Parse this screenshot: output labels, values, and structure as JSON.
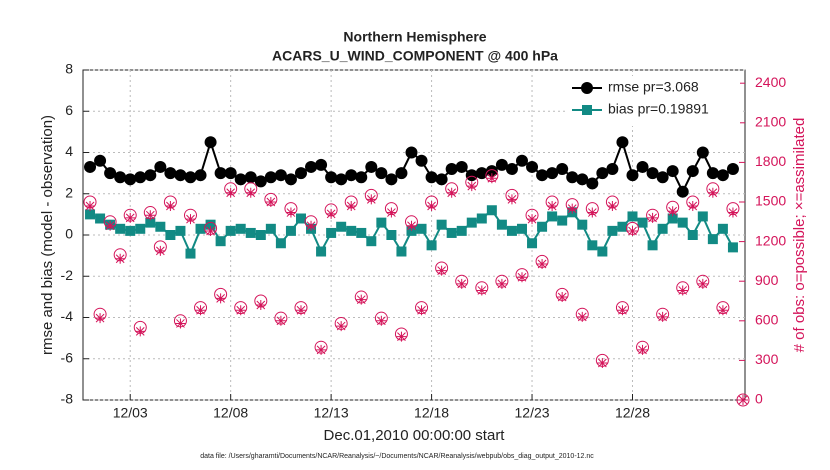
{
  "chart_data": {
    "type": "line",
    "title": "Northern Hemisphere",
    "subtitle": "ACARS_U_WIND_COMPONENT @ 400 hPa",
    "xlabel": "Dec.01,2010 00:00:00 start",
    "ylabel": "rmse and bias (model - observation)",
    "y2label": "# of obs: o=possible; ×=assimilated",
    "footnote": "data file: /Users/gharamti/Documents/NCAR/Reanalysis/~/Documents/NCAR/Reanalysis/webpub/obs_diag_output_2010-12.nc",
    "xlim": [
      -0.35,
      32.6
    ],
    "xticks": [
      {
        "value": 2,
        "label": "12/03"
      },
      {
        "value": 7,
        "label": "12/08"
      },
      {
        "value": 12,
        "label": "12/13"
      },
      {
        "value": 17,
        "label": "12/18"
      },
      {
        "value": 22,
        "label": "12/23"
      },
      {
        "value": 27,
        "label": "12/28"
      }
    ],
    "ylim": [
      -8,
      8
    ],
    "yticks": [
      -8,
      -6,
      -4,
      -2,
      0,
      2,
      4,
      6,
      8
    ],
    "y2lim": [
      0,
      2500
    ],
    "y2ticks": [
      0,
      300,
      600,
      900,
      1200,
      1500,
      1800,
      2100,
      2400
    ],
    "grid": true,
    "legend": "upper right",
    "x": [
      0,
      0.5,
      1,
      1.5,
      2,
      2.5,
      3,
      3.5,
      4,
      4.5,
      5,
      5.5,
      6,
      6.5,
      7,
      7.5,
      8,
      8.5,
      9,
      9.5,
      10,
      10.5,
      11,
      11.5,
      12,
      12.5,
      13,
      13.5,
      14,
      14.5,
      15,
      15.5,
      16,
      16.5,
      17,
      17.5,
      18,
      18.5,
      19,
      19.5,
      20,
      20.5,
      21,
      21.5,
      22,
      22.5,
      23,
      23.5,
      24,
      24.5,
      25,
      25.5,
      26,
      26.5,
      27,
      27.5,
      28,
      28.5,
      29,
      29.5,
      30,
      30.5,
      31,
      31.5,
      32,
      32.5
    ],
    "series": [
      {
        "name": "rmse pr=3.068",
        "color": "#000000",
        "marker": "circle",
        "values": [
          3.3,
          3.6,
          3.0,
          2.8,
          2.7,
          2.8,
          2.9,
          3.3,
          3.0,
          2.9,
          2.8,
          2.9,
          4.5,
          3.0,
          3.0,
          2.7,
          2.8,
          2.6,
          2.8,
          2.9,
          2.7,
          3.0,
          3.3,
          3.4,
          2.8,
          2.7,
          2.9,
          2.8,
          3.3,
          3.0,
          2.7,
          3.0,
          4.0,
          3.6,
          2.8,
          2.7,
          3.2,
          3.3,
          2.9,
          3.0,
          3.1,
          3.4,
          3.2,
          3.6,
          3.3,
          2.9,
          3.0,
          3.2,
          2.8,
          2.7,
          2.5,
          3.0,
          3.2,
          4.5,
          2.9,
          3.3,
          3.0,
          2.8,
          3.1,
          2.1,
          3.1,
          4.0,
          3.0,
          2.9,
          3.2,
          null
        ]
      },
      {
        "name": "bias pr=0.19891",
        "color": "#128a84",
        "marker": "square",
        "values": [
          1.0,
          0.8,
          0.5,
          0.3,
          0.2,
          0.3,
          0.6,
          0.4,
          0.0,
          0.2,
          -0.9,
          0.3,
          0.5,
          -0.3,
          0.2,
          0.3,
          0.1,
          0.0,
          0.3,
          -0.4,
          0.2,
          0.8,
          0.3,
          -0.8,
          0.1,
          0.4,
          0.2,
          0.1,
          -0.3,
          0.6,
          0.0,
          -0.8,
          0.2,
          0.3,
          -0.5,
          0.5,
          0.1,
          0.2,
          0.6,
          0.8,
          1.2,
          0.5,
          0.2,
          0.3,
          -0.4,
          0.4,
          0.9,
          0.7,
          1.1,
          0.5,
          -0.5,
          -0.8,
          0.2,
          0.4,
          0.9,
          0.6,
          -0.5,
          0.3,
          0.8,
          0.6,
          0.0,
          0.9,
          -0.2,
          0.3,
          -0.6,
          null
        ]
      },
      {
        "name": "possible",
        "axis": "y2",
        "color": "#d4145a",
        "marker": "open-circle",
        "values": [
          1500,
          650,
          1350,
          1100,
          1400,
          550,
          1420,
          1160,
          1500,
          600,
          1400,
          700,
          1300,
          800,
          1600,
          700,
          1600,
          750,
          1520,
          620,
          1450,
          700,
          1350,
          400,
          1440,
          580,
          1500,
          780,
          1550,
          620,
          1450,
          500,
          1350,
          700,
          1500,
          1000,
          1600,
          900,
          1650,
          850,
          1700,
          900,
          1550,
          950,
          1400,
          1050,
          1500,
          800,
          1480,
          650,
          1450,
          300,
          1500,
          700,
          1300,
          400,
          1400,
          650,
          1460,
          850,
          1500,
          900,
          1600,
          700,
          1450,
          0
        ]
      },
      {
        "name": "assimilated",
        "axis": "y2",
        "color": "#d4145a",
        "marker": "asterisk",
        "values": [
          1470,
          620,
          1320,
          1070,
          1380,
          520,
          1400,
          1130,
          1470,
          580,
          1370,
          680,
          1280,
          770,
          1570,
          680,
          1570,
          720,
          1500,
          600,
          1420,
          680,
          1320,
          380,
          1410,
          560,
          1470,
          760,
          1520,
          600,
          1420,
          480,
          1320,
          680,
          1470,
          980,
          1570,
          880,
          1620,
          830,
          1680,
          880,
          1520,
          930,
          1370,
          1030,
          1470,
          780,
          1450,
          630,
          1420,
          280,
          1470,
          680,
          1280,
          380,
          1380,
          630,
          1430,
          830,
          1470,
          880,
          1570,
          680,
          1420,
          0
        ]
      }
    ]
  }
}
